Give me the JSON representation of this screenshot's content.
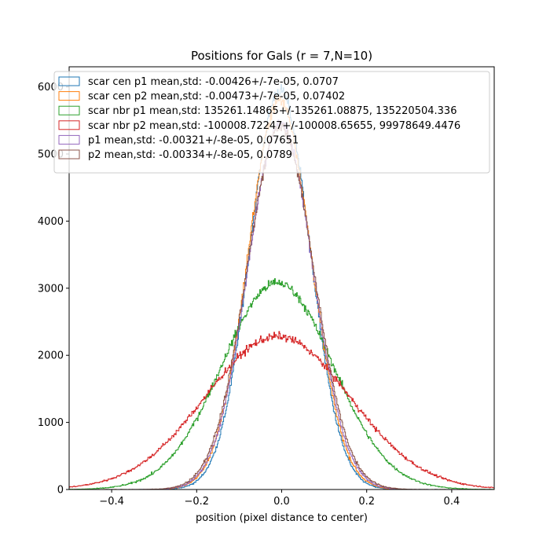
{
  "chart_data": {
    "type": "histogram-step",
    "title": "Positions for Gals (r = 7,N=10)",
    "xlabel": "position (pixel distance to center)",
    "ylabel": "",
    "xlim": [
      -0.5,
      0.5
    ],
    "ylim": [
      0,
      6300
    ],
    "x_ticks": [
      -0.4,
      -0.2,
      0.0,
      0.2,
      0.4
    ],
    "x_tick_labels": [
      "−0.4",
      "−0.2",
      "0.0",
      "0.2",
      "0.4"
    ],
    "y_ticks": [
      0,
      1000,
      2000,
      3000,
      4000,
      5000,
      6000
    ],
    "y_tick_labels": [
      "0",
      "1000",
      "2000",
      "3000",
      "4000",
      "5000",
      "6000"
    ],
    "grid": false,
    "legend_position": "top",
    "bins": {
      "count": 600,
      "start": -0.5,
      "end": 0.5
    },
    "series": [
      {
        "name": "scar cen p1 mean,std: -0.00426+/-7e-05, 0.0707",
        "color": "#1f77b4",
        "shape": "gaussian",
        "peak": 5950,
        "center": -0.004,
        "sigma": 0.0707
      },
      {
        "name": "scar cen p2 mean,std: -0.00473+/-7e-05, 0.07402",
        "color": "#ff7f0e",
        "shape": "gaussian",
        "peak": 5800,
        "center": -0.005,
        "sigma": 0.074
      },
      {
        "name": "scar nbr p1 mean,std: 135261.14865+/-135261.08875, 135220504.336",
        "color": "#2ca02c",
        "shape": "gaussian",
        "peak": 3080,
        "center": -0.01,
        "sigma": 0.13
      },
      {
        "name": "scar nbr p2 mean,std: -100008.72247+/-100008.65655, 99978649.4476",
        "color": "#d62728",
        "shape": "gaussian",
        "peak": 2280,
        "center": -0.01,
        "sigma": 0.17
      },
      {
        "name": "p1 mean,std: -0.00321+/-8e-05, 0.07651",
        "color": "#9467bd",
        "shape": "gaussian",
        "peak": 5450,
        "center": -0.003,
        "sigma": 0.0765
      },
      {
        "name": "p2 mean,std: -0.00334+/-8e-05, 0.0789",
        "color": "#8c564b",
        "shape": "gaussian",
        "peak": 5400,
        "center": -0.003,
        "sigma": 0.0789
      }
    ]
  }
}
